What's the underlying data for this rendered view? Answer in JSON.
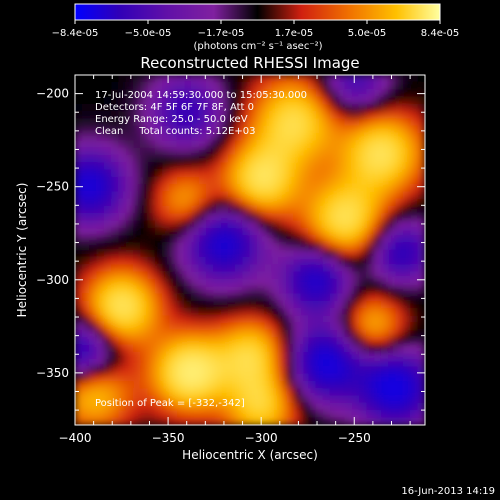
{
  "chart_data": {
    "type": "heatmap",
    "title": "Reconstructed RHESSI Image",
    "xlabel": "Heliocentric X (arcsec)",
    "ylabel": "Heliocentric Y (arcsec)",
    "xlim": [
      -400,
      -212
    ],
    "ylim": [
      -378,
      -190
    ],
    "x_ticks": [
      "-400",
      "-350",
      "-300",
      "-250"
    ],
    "y_ticks": [
      "-200",
      "-250",
      "-300",
      "-350"
    ],
    "colorbar": {
      "label": "(photons cm⁻² s⁻¹ asec⁻²)",
      "range": [
        -8.4e-05,
        8.4e-05
      ],
      "tick_labels": [
        "-8.4e-05",
        "-5.0e-05",
        "-1.7e-05",
        "1.7e-05",
        "5.0e-05",
        "8.4e-05"
      ],
      "colors": [
        "#0000ff",
        "#3000b8",
        "#6010a8",
        "#8020a0",
        "#000000",
        "#d02010",
        "#f07000",
        "#ffc000",
        "#ffffa0"
      ]
    },
    "annotations": [
      "17-Jul-2004 14:59:30.000 to 15:05:30.000",
      "Detectors: 4F 5F 6F 7F 8F, Att 0",
      "Energy Range: 25.0 - 50.0 keV",
      "Clean     Total counts: 5.12E+03"
    ],
    "peak_label": "Position of Peak = [-332,-342]",
    "peak": [
      -332,
      -342
    ],
    "blobs": [
      {
        "x": -338,
        "y": -350,
        "amp": 1.0,
        "w": 14
      },
      {
        "x": -375,
        "y": -315,
        "amp": 0.9,
        "w": 14
      },
      {
        "x": -300,
        "y": -247,
        "amp": 0.85,
        "w": 14
      },
      {
        "x": -282,
        "y": -215,
        "amp": 0.8,
        "w": 16
      },
      {
        "x": -235,
        "y": -232,
        "amp": 0.85,
        "w": 15
      },
      {
        "x": -255,
        "y": -268,
        "amp": 0.85,
        "w": 15
      },
      {
        "x": -340,
        "y": -258,
        "amp": 0.5,
        "w": 12
      },
      {
        "x": -305,
        "y": -340,
        "amp": 0.7,
        "w": 13
      },
      {
        "x": -300,
        "y": -368,
        "amp": 0.7,
        "w": 13
      },
      {
        "x": -240,
        "y": -325,
        "amp": 0.55,
        "w": 12
      },
      {
        "x": -390,
        "y": -360,
        "amp": 0.7,
        "w": 14
      },
      {
        "x": -395,
        "y": -340,
        "amp": -0.8,
        "w": 13
      },
      {
        "x": -392,
        "y": -250,
        "amp": -0.8,
        "w": 14
      },
      {
        "x": -320,
        "y": -280,
        "amp": -0.8,
        "w": 15
      },
      {
        "x": -270,
        "y": -300,
        "amp": -0.75,
        "w": 13
      },
      {
        "x": -265,
        "y": -345,
        "amp": -0.85,
        "w": 14
      },
      {
        "x": -228,
        "y": -358,
        "amp": -0.9,
        "w": 14
      },
      {
        "x": -225,
        "y": -285,
        "amp": -0.65,
        "w": 12
      },
      {
        "x": -340,
        "y": -210,
        "amp": -0.55,
        "w": 14
      },
      {
        "x": -250,
        "y": -195,
        "amp": -0.5,
        "w": 13
      }
    ]
  },
  "footer": {
    "timestamp": "16-Jun-2013 14:19"
  }
}
